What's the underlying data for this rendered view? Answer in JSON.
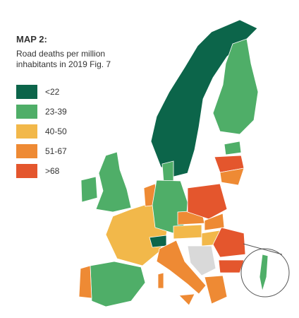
{
  "title": "MAP 2:",
  "subtitle": [
    "Road deaths per million",
    "inhabitants in 2019 Fig. 7"
  ],
  "legend": [
    {
      "label": "<22",
      "color": "#0c654a"
    },
    {
      "label": "23-39",
      "color": "#4fae68"
    },
    {
      "label": "40-50",
      "color": "#f2b84a"
    },
    {
      "label": "51-67",
      "color": "#ee8a34"
    },
    {
      "label": ">68",
      "color": "#e4562d"
    }
  ]
}
